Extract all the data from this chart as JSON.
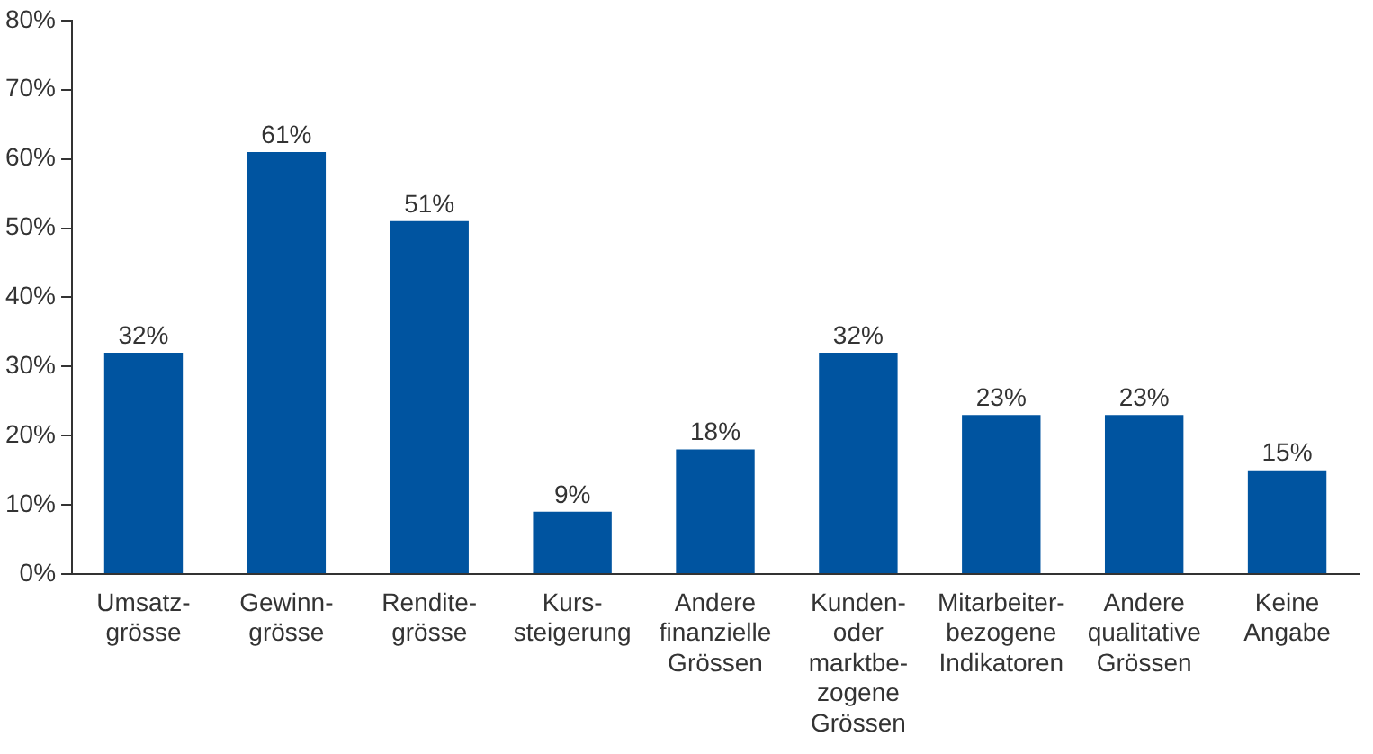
{
  "chart_data": {
    "type": "bar",
    "categories": [
      "Umsatz-\ngrösse",
      "Gewinn-\ngrösse",
      "Rendite-\ngrösse",
      "Kurs-\nsteigerung",
      "Andere\nfinanzielle\nGrössen",
      "Kunden-\noder\nmarktbe-\nzogene\nGrössen",
      "Mitarbeiter-\nbezogene\nIndikatoren",
      "Andere\nqualitative\nGrössen",
      "Keine\nAngabe"
    ],
    "values": [
      32,
      61,
      51,
      9,
      18,
      32,
      23,
      23,
      15
    ],
    "value_labels": [
      "32%",
      "61%",
      "51%",
      "9%",
      "18%",
      "32%",
      "23%",
      "23%",
      "15%"
    ],
    "color": "#0054a0",
    "ylim": [
      0,
      80
    ],
    "yticks": [
      {
        "value": 0,
        "label": "0%"
      },
      {
        "value": 10,
        "label": "10%"
      },
      {
        "value": 20,
        "label": "20%"
      },
      {
        "value": 30,
        "label": "30%"
      },
      {
        "value": 40,
        "label": "40%"
      },
      {
        "value": 50,
        "label": "50%"
      },
      {
        "value": 60,
        "label": "60%"
      },
      {
        "value": 70,
        "label": "70%"
      },
      {
        "value": 80,
        "label": "80%"
      }
    ],
    "grid": false,
    "legend": false
  }
}
